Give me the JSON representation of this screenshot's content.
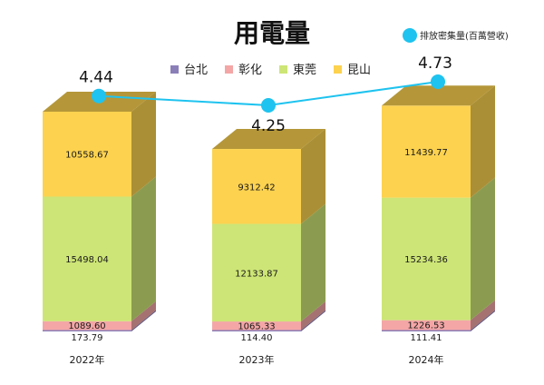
{
  "chart_data": {
    "type": "bar",
    "title": "用電量",
    "categories": [
      "2022年",
      "2023年",
      "2024年"
    ],
    "series": [
      {
        "name": "台北",
        "color": "#8b7fb8",
        "values": [
          173.79,
          114.4,
          111.41
        ]
      },
      {
        "name": "彰化",
        "color": "#f4a6a6",
        "values": [
          1089.6,
          1065.33,
          1226.53
        ]
      },
      {
        "name": "東莞",
        "color": "#cde576",
        "values": [
          15498.04,
          12133.87,
          15234.36
        ]
      },
      {
        "name": "昆山",
        "color": "#fcd24f",
        "values": [
          10558.67,
          9312.42,
          11439.77
        ]
      }
    ],
    "line_series": {
      "name": "排放密集量(百萬營收)",
      "color": "#1ec3ef",
      "values": [
        4.44,
        4.25,
        4.73
      ]
    },
    "stacked": true,
    "three_d": true,
    "legend_position": "top"
  }
}
